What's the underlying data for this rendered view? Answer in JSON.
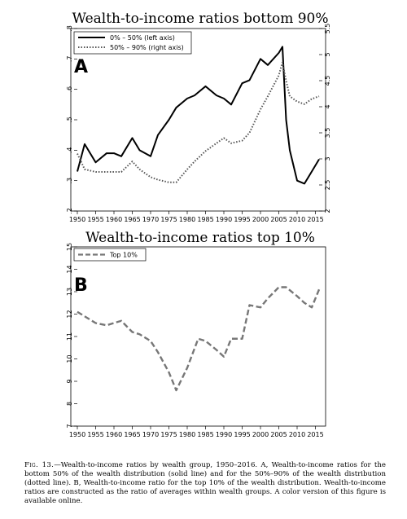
{
  "caption": {
    "label": "Fig. 13.",
    "text": "—Wealth-to-income ratios by wealth group, 1950–2016. A, Wealth-to-income ratios for the bottom 50% of the wealth distribution (solid line) and for the 50%–90% of the wealth distribution (dotted line). B, Wealth-to-income ratio for the top 10% of the wealth distribution. Wealth-to-income ratios are constructed as the ratio of averages within wealth groups. A color version of this figure is available online."
  },
  "chart_data": [
    {
      "type": "line",
      "panel_label": "A",
      "title": "Wealth-to-income ratios bottom 90%",
      "xlabel": "",
      "ylabel": "",
      "xlim": [
        1950,
        2016
      ],
      "xticks": [
        1950,
        1955,
        1960,
        1965,
        1970,
        1975,
        1980,
        1985,
        1990,
        1995,
        2000,
        2005,
        2010,
        2015
      ],
      "ylim_left": [
        0.2,
        0.8
      ],
      "yticks_left": [
        0.2,
        0.3,
        0.4,
        0.5,
        0.6,
        0.7,
        0.8
      ],
      "ytick_labels_left": [
        ".2",
        ".3",
        ".4",
        ".5",
        ".6",
        ".7",
        ".8"
      ],
      "ylim_right": [
        2,
        5.5
      ],
      "yticks_right": [
        2,
        2.5,
        3,
        3.5,
        4,
        4.5,
        5,
        5.5
      ],
      "ytick_labels_right": [
        "2",
        "2.5",
        "3",
        "3.5",
        "4",
        "4.5",
        "5",
        "5.5"
      ],
      "legend_position": "top-left",
      "grid": false,
      "series": [
        {
          "name": "0% – 50% (left axis)",
          "axis": "left",
          "style": "solid",
          "color": "#000000",
          "x": [
            1950,
            1952,
            1955,
            1958,
            1960,
            1962,
            1965,
            1967,
            1970,
            1972,
            1975,
            1977,
            1980,
            1982,
            1985,
            1988,
            1990,
            1992,
            1995,
            1997,
            2000,
            2002,
            2005,
            2006,
            2007,
            2008,
            2010,
            2012,
            2014,
            2016
          ],
          "y": [
            0.33,
            0.42,
            0.36,
            0.39,
            0.39,
            0.38,
            0.44,
            0.4,
            0.38,
            0.45,
            0.5,
            0.54,
            0.57,
            0.58,
            0.61,
            0.58,
            0.57,
            0.55,
            0.62,
            0.63,
            0.7,
            0.68,
            0.72,
            0.74,
            0.5,
            0.4,
            0.3,
            0.29,
            0.33,
            0.37
          ]
        },
        {
          "name": "50% – 90% (right axis)",
          "axis": "right",
          "style": "dotted",
          "color": "#555555",
          "x": [
            1950,
            1952,
            1955,
            1958,
            1960,
            1962,
            1965,
            1967,
            1970,
            1972,
            1975,
            1977,
            1980,
            1982,
            1985,
            1988,
            1990,
            1992,
            1995,
            1997,
            2000,
            2002,
            2005,
            2006,
            2007,
            2008,
            2010,
            2012,
            2014,
            2016
          ],
          "y": [
            3.1,
            2.8,
            2.75,
            2.75,
            2.75,
            2.75,
            2.95,
            2.8,
            2.65,
            2.6,
            2.55,
            2.55,
            2.8,
            2.95,
            3.15,
            3.3,
            3.4,
            3.3,
            3.35,
            3.5,
            3.95,
            4.2,
            4.6,
            4.85,
            4.5,
            4.2,
            4.1,
            4.05,
            4.15,
            4.2
          ]
        }
      ]
    },
    {
      "type": "line",
      "panel_label": "B",
      "title": "Wealth-to-income ratios top 10%",
      "xlabel": "",
      "ylabel": "",
      "xlim": [
        1950,
        2016
      ],
      "xticks": [
        1950,
        1955,
        1960,
        1965,
        1970,
        1975,
        1980,
        1985,
        1990,
        1995,
        2000,
        2005,
        2010,
        2015
      ],
      "ylim": [
        7,
        15
      ],
      "yticks": [
        7,
        8,
        9,
        10,
        11,
        12,
        13,
        14,
        15
      ],
      "legend_position": "top-left",
      "grid": false,
      "series": [
        {
          "name": "Top 10%",
          "style": "dashed",
          "color": "#777777",
          "x": [
            1950,
            1952,
            1955,
            1958,
            1960,
            1962,
            1965,
            1967,
            1970,
            1972,
            1975,
            1977,
            1980,
            1983,
            1985,
            1988,
            1990,
            1992,
            1995,
            1997,
            2000,
            2002,
            2005,
            2007,
            2010,
            2012,
            2014,
            2016
          ],
          "y": [
            12.1,
            11.9,
            11.6,
            11.5,
            11.6,
            11.7,
            11.2,
            11.1,
            10.8,
            10.3,
            9.4,
            8.6,
            9.6,
            10.9,
            10.8,
            10.4,
            10.1,
            10.9,
            10.9,
            12.4,
            12.3,
            12.7,
            13.2,
            13.2,
            12.8,
            12.5,
            12.3,
            13.1
          ]
        }
      ]
    }
  ]
}
